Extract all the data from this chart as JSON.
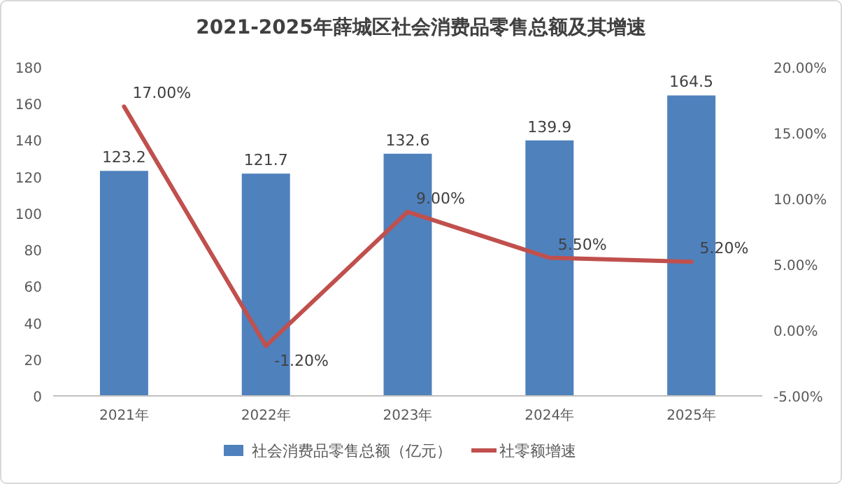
{
  "chart_data": {
    "type": "bar",
    "title": "2021-2025年薛城区社会消费品零售总额及其增速",
    "categories": [
      "2021年",
      "2022年",
      "2023年",
      "2024年",
      "2025年"
    ],
    "series": [
      {
        "name": "社会消费品零售总额（亿元）",
        "color": "#4f81bd",
        "values": [
          123.2,
          121.7,
          132.6,
          139.9,
          164.5
        ],
        "data_labels": true
      },
      {
        "name": "社零额增速",
        "type": "line",
        "axis": "y2",
        "color": "#c0504d",
        "values": [
          17.0,
          -1.2,
          9.0,
          5.5,
          5.2
        ],
        "value_labels": [
          "17.00%",
          "-1.20%",
          "9.00%",
          "5.50%",
          "5.20%"
        ]
      }
    ],
    "ylim": [
      0,
      180
    ],
    "yticks": [
      0,
      20,
      40,
      60,
      80,
      100,
      120,
      140,
      160,
      180
    ],
    "y2lim": [
      -5,
      20
    ],
    "y2ticks": [
      {
        "value": -5,
        "label": "-5.00%"
      },
      {
        "value": 0,
        "label": "0.00%"
      },
      {
        "value": 5,
        "label": "5.00%"
      },
      {
        "value": 10,
        "label": "10.00%"
      },
      {
        "value": 15,
        "label": "15.00%"
      },
      {
        "value": 20,
        "label": "20.00%"
      }
    ],
    "grid": false,
    "legend": "bottom",
    "marker": "none",
    "line_style": "solid"
  }
}
